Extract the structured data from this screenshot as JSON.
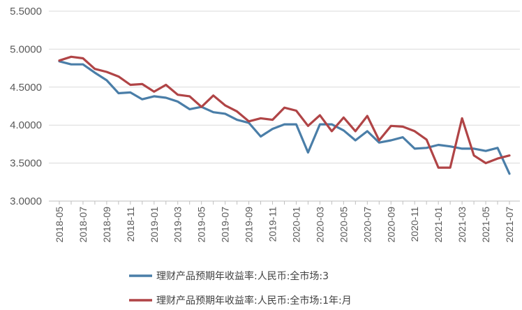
{
  "chart_data": {
    "type": "line",
    "title": "",
    "xlabel": "",
    "ylabel": "",
    "ylim": [
      3.0,
      5.5
    ],
    "y_ticks": [
      "3.0000",
      "3.5000",
      "4.0000",
      "4.5000",
      "5.0000",
      "5.5000"
    ],
    "x_tick_labels": [
      "2018-05",
      "2018-07",
      "2018-09",
      "2018-11",
      "2019-01",
      "2019-03",
      "2019-05",
      "2019-07",
      "2019-09",
      "2019-11",
      "2020-01",
      "2020-03",
      "2020-05",
      "2020-07",
      "2020-09",
      "2020-11",
      "2021-01",
      "2021-03",
      "2021-05",
      "2021-07"
    ],
    "x": [
      "2018-05",
      "2018-06",
      "2018-07",
      "2018-08",
      "2018-09",
      "2018-10",
      "2018-11",
      "2018-12",
      "2019-01",
      "2019-02",
      "2019-03",
      "2019-04",
      "2019-05",
      "2019-06",
      "2019-07",
      "2019-08",
      "2019-09",
      "2019-10",
      "2019-11",
      "2019-12",
      "2020-01",
      "2020-02",
      "2020-03",
      "2020-04",
      "2020-05",
      "2020-06",
      "2020-07",
      "2020-08",
      "2020-09",
      "2020-10",
      "2020-11",
      "2020-12",
      "2021-01",
      "2021-02",
      "2021-03",
      "2021-04",
      "2021-05",
      "2021-06",
      "2021-07"
    ],
    "grid": true,
    "legend_position": "bottom",
    "series": [
      {
        "name": "理财产品预期年收益率:人民币:全市场:3个月",
        "name_visible": "理财产品预期年收益率:人民币:全市场:3",
        "color": "#4a7ea8",
        "values": [
          4.84,
          4.8,
          4.8,
          4.69,
          4.59,
          4.42,
          4.43,
          4.34,
          4.38,
          4.36,
          4.31,
          4.21,
          4.24,
          4.17,
          4.15,
          4.07,
          4.03,
          3.85,
          3.95,
          4.01,
          4.01,
          3.64,
          4.01,
          4.01,
          3.93,
          3.8,
          3.92,
          3.77,
          3.8,
          3.84,
          3.69,
          3.7,
          3.74,
          3.72,
          3.69,
          3.69,
          3.66,
          3.7,
          3.36
        ]
      },
      {
        "name": "理财产品预期年收益率:人民币:全市场:1年:月",
        "color": "#b04446",
        "values": [
          4.85,
          4.9,
          4.88,
          4.74,
          4.7,
          4.64,
          4.53,
          4.54,
          4.44,
          4.53,
          4.4,
          4.38,
          4.24,
          4.39,
          4.26,
          4.18,
          4.05,
          4.09,
          4.07,
          4.23,
          4.19,
          3.99,
          4.13,
          3.92,
          4.1,
          3.92,
          4.12,
          3.8,
          3.99,
          3.98,
          3.92,
          3.81,
          3.44,
          3.44,
          4.09,
          3.6,
          3.5,
          3.56,
          3.6
        ]
      }
    ]
  }
}
